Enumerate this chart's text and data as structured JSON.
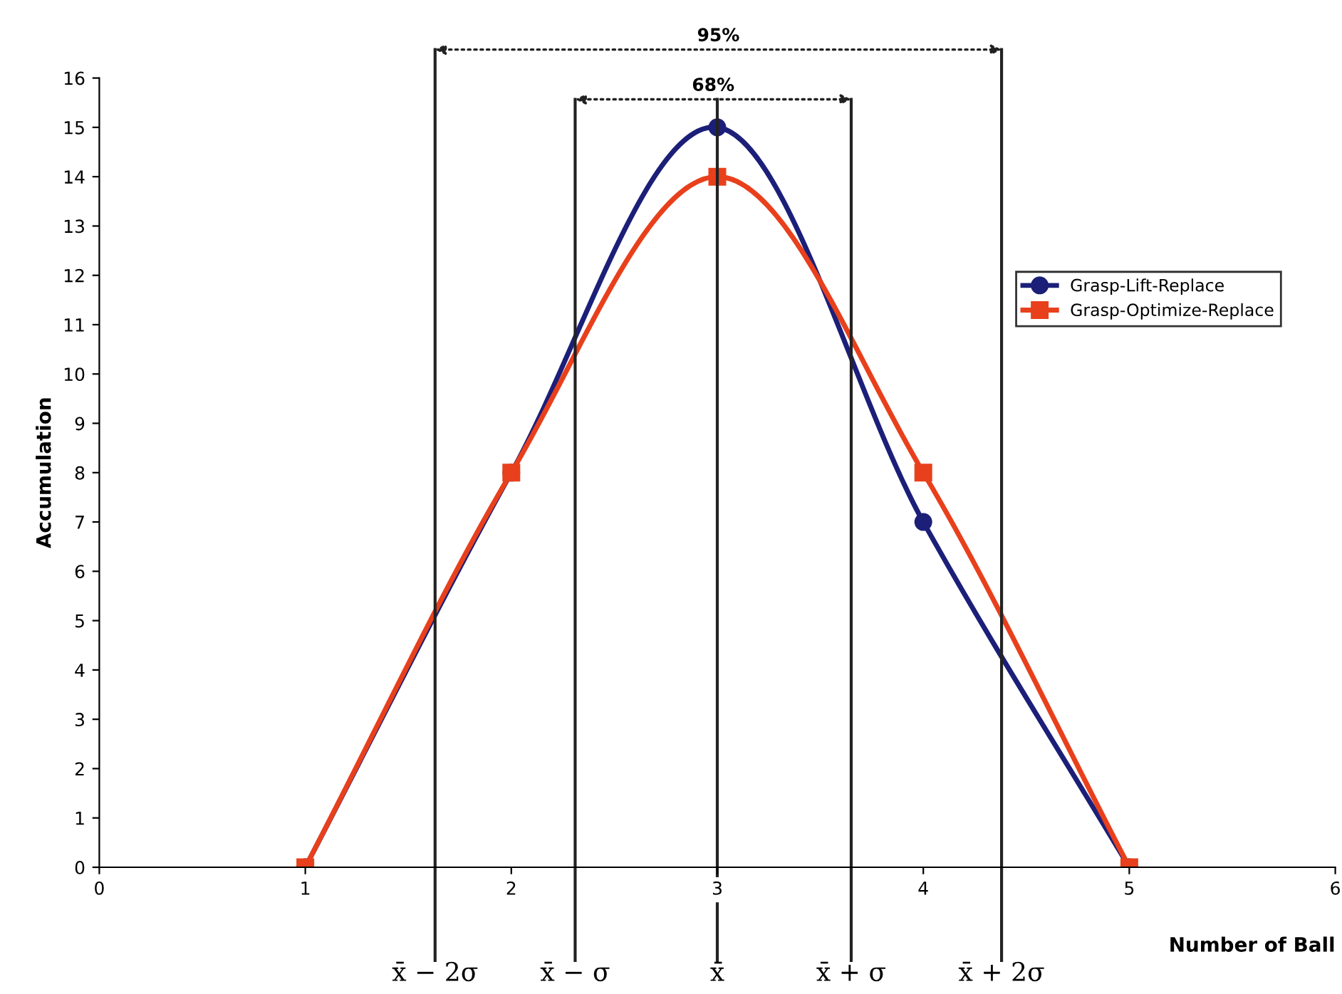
{
  "chart_data": {
    "type": "line",
    "xlabel": "Number of Ball",
    "ylabel": "Accumulation",
    "x": [
      1,
      2,
      3,
      4,
      5
    ],
    "series": [
      {
        "name": "Grasp-Lift-Replace",
        "color": "#1c1f78",
        "marker": "circle",
        "values": [
          0,
          8,
          15,
          7,
          0
        ]
      },
      {
        "name": "Grasp-Optimize-Replace",
        "color": "#e8401c",
        "marker": "square",
        "values": [
          0,
          8,
          14,
          8,
          0
        ]
      }
    ],
    "xlim": [
      0,
      6
    ],
    "xticks": [
      0,
      1,
      2,
      3,
      4,
      5,
      6
    ],
    "ylim": [
      0,
      16
    ],
    "yticks": [
      0,
      1,
      2,
      3,
      4,
      5,
      6,
      7,
      8,
      9,
      10,
      11,
      12,
      13,
      14,
      15,
      16
    ],
    "ref_lines": [
      {
        "axis": "x",
        "value": 1.63,
        "label": "x̄ − 2σ",
        "color": "#222222"
      },
      {
        "axis": "x",
        "value": 2.31,
        "label": "x̄ − σ",
        "color": "#222222"
      },
      {
        "axis": "x",
        "value": 3,
        "label": "x̄",
        "color": "#222222"
      },
      {
        "axis": "x",
        "value": 3.65,
        "label": "x̄ + σ",
        "color": "#222222"
      },
      {
        "axis": "x",
        "value": 4.38,
        "label": "x̄ + 2σ",
        "color": "#222222"
      }
    ],
    "annotations": [
      "95%",
      "68%"
    ],
    "legend": "right",
    "grid": false
  }
}
